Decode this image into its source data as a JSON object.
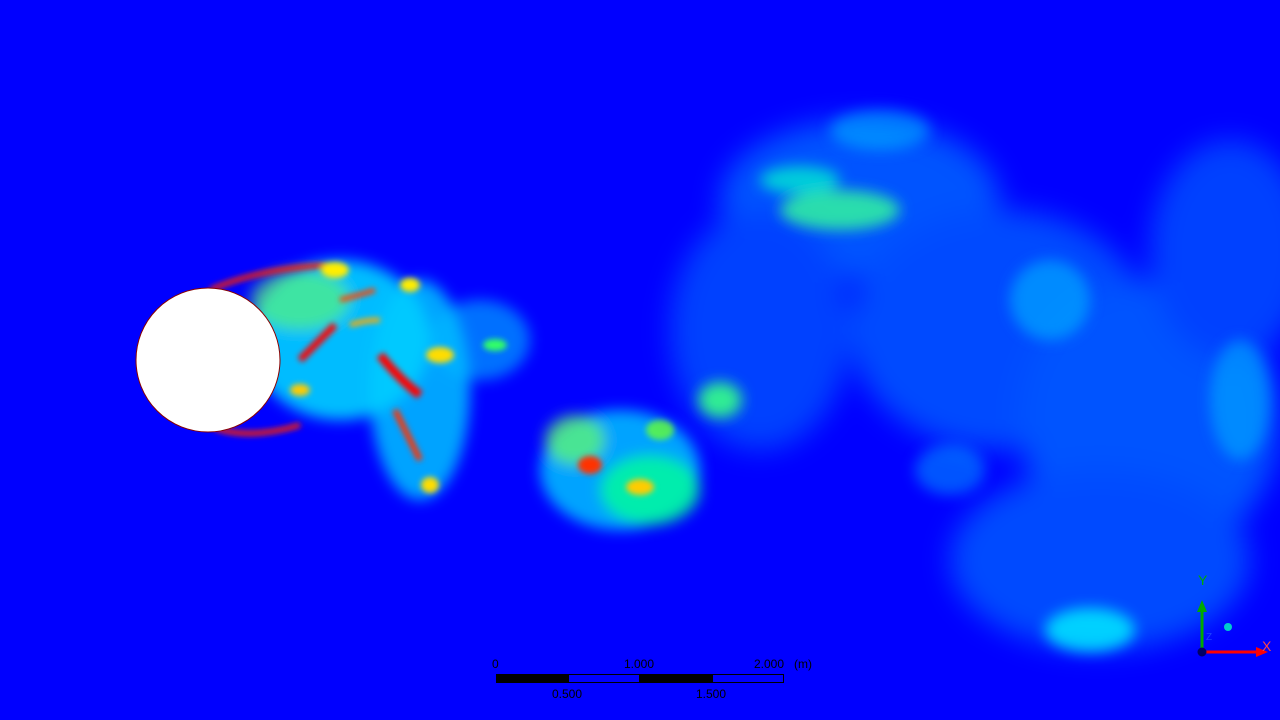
{
  "viewport": {
    "background_color": "#0000ff",
    "colormap": [
      "#0000ff",
      "#00ffff",
      "#00ff00",
      "#ffff00",
      "#ff0000"
    ],
    "obstacle": "cylinder"
  },
  "scale_bar": {
    "top_labels": [
      "0",
      "1.000",
      "2.000"
    ],
    "unit": "(m)",
    "bottom_labels": [
      "0.500",
      "1.500"
    ]
  },
  "axis_triad": {
    "y_label": "Y",
    "x_label": "X",
    "z_label": "Z",
    "y_color": "#00aa00",
    "x_color": "#ff0000",
    "z_color": "#00bbbb"
  }
}
